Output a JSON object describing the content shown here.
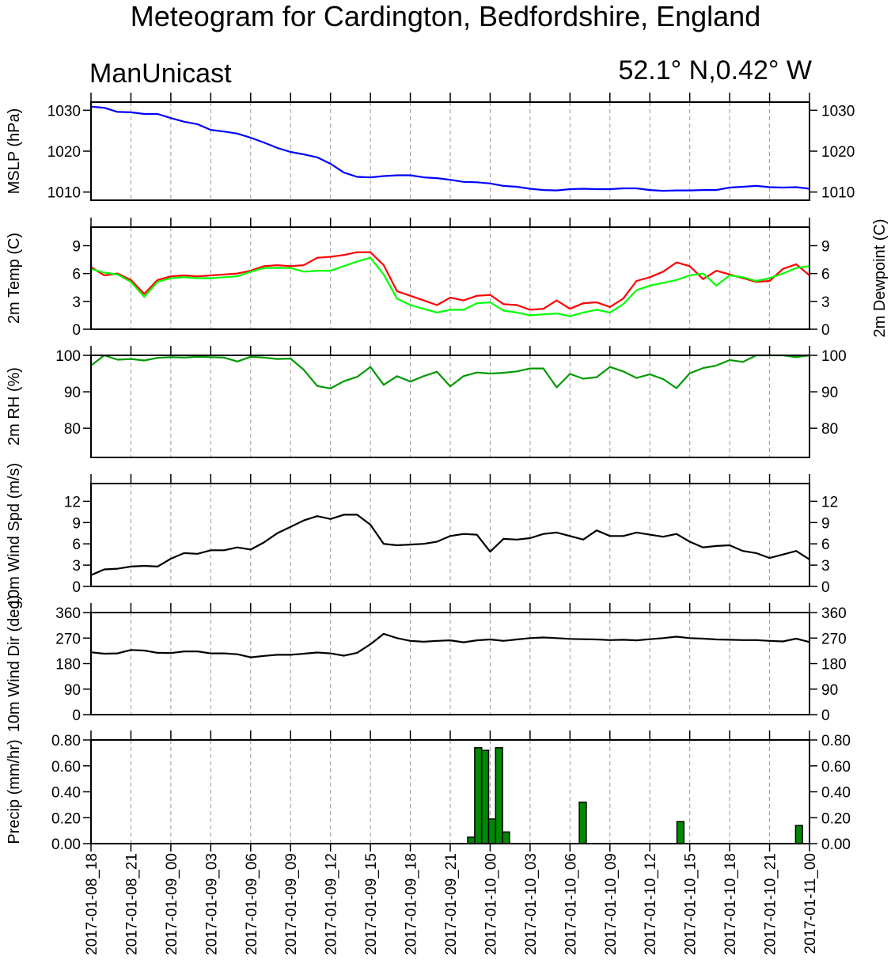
{
  "title": "Meteogram for Cardington, Bedfordshire, England",
  "model": "ManUnicast",
  "location": "52.1° N,0.42° W",
  "colors": {
    "pressure": "#0000ff",
    "temperature": "#ff0000",
    "dewpoint": "#00ff00",
    "rh": "#009900",
    "wind": "#000000",
    "precip_fill": "#008800"
  },
  "chart_data": [
    {
      "type": "line",
      "ylabel": "MSLP (hPa)",
      "ylim": [
        1008,
        1032
      ],
      "yticks": [
        1010,
        1020,
        1030
      ],
      "right_ticks": true,
      "series": [
        {
          "color": "#0000ff",
          "values": [
            1030.9,
            1030.6,
            1029.6,
            1029.5,
            1029.1,
            1029.1,
            1028.1,
            1027.2,
            1026.6,
            1025.2,
            1024.8,
            1024.3,
            1023.3,
            1022.1,
            1020.8,
            1019.8,
            1019.2,
            1018.5,
            1016.9,
            1014.8,
            1013.7,
            1013.6,
            1013.9,
            1014.1,
            1014.1,
            1013.6,
            1013.4,
            1013.0,
            1012.5,
            1012.4,
            1012.1,
            1011.5,
            1011.3,
            1010.8,
            1010.5,
            1010.4,
            1010.7,
            1010.8,
            1010.7,
            1010.7,
            1010.9,
            1010.9,
            1010.5,
            1010.3,
            1010.4,
            1010.4,
            1010.5,
            1010.5,
            1011.1,
            1011.3,
            1011.5,
            1011.2,
            1011.1,
            1011.2,
            1010.8
          ]
        }
      ]
    },
    {
      "type": "line",
      "ylabel": "2m Temp (C)",
      "ylabel_right": "2m Dewpoint (C)",
      "ylim": [
        0,
        11
      ],
      "yticks": [
        0,
        3,
        6,
        9
      ],
      "right_ticks": true,
      "series": [
        {
          "color": "#ff0000",
          "values": [
            6.7,
            5.8,
            6.0,
            5.3,
            3.8,
            5.3,
            5.7,
            5.8,
            5.7,
            5.8,
            5.9,
            6.0,
            6.3,
            6.8,
            6.9,
            6.8,
            6.9,
            7.7,
            7.8,
            8.0,
            8.3,
            8.3,
            6.9,
            4.1,
            3.6,
            3.1,
            2.6,
            3.4,
            3.1,
            3.6,
            3.7,
            2.7,
            2.6,
            2.1,
            2.2,
            3.1,
            2.2,
            2.8,
            2.9,
            2.4,
            3.3,
            5.2,
            5.6,
            6.2,
            7.2,
            6.8,
            5.4,
            6.3,
            5.9,
            5.5,
            5.1,
            5.2,
            6.5,
            7.0,
            5.8
          ]
        },
        {
          "color": "#00ff00",
          "values": [
            6.5,
            6.1,
            5.9,
            5.1,
            3.5,
            5.1,
            5.5,
            5.6,
            5.5,
            5.5,
            5.6,
            5.7,
            6.2,
            6.6,
            6.6,
            6.6,
            6.2,
            6.3,
            6.3,
            6.8,
            7.3,
            7.7,
            5.9,
            3.3,
            2.6,
            2.2,
            1.8,
            2.1,
            2.1,
            2.8,
            2.9,
            2.0,
            1.8,
            1.5,
            1.6,
            1.7,
            1.4,
            1.8,
            2.1,
            1.8,
            2.7,
            4.2,
            4.7,
            5.0,
            5.3,
            5.8,
            6.0,
            4.7,
            5.8,
            5.6,
            5.2,
            5.5,
            6.0,
            6.6,
            6.8
          ]
        }
      ]
    },
    {
      "type": "line",
      "ylabel": "2m RH (%)",
      "ylim": [
        72,
        100
      ],
      "yticks": [
        80,
        90,
        100
      ],
      "right_ticks": true,
      "series": [
        {
          "color": "#009900",
          "values": [
            97.2,
            100,
            98.8,
            99.0,
            98.6,
            99.3,
            99.5,
            99.4,
            99.6,
            99.5,
            99.4,
            98.3,
            99.6,
            99.4,
            99.0,
            99.1,
            96.0,
            91.6,
            90.9,
            92.9,
            94.1,
            96.8,
            91.9,
            94.3,
            92.8,
            94.3,
            95.5,
            91.5,
            94.3,
            95.3,
            95.0,
            95.2,
            95.6,
            96.4,
            96.4,
            91.2,
            94.9,
            93.6,
            94.0,
            96.8,
            95.6,
            93.8,
            94.8,
            93.5,
            91.0,
            95.1,
            96.5,
            97.2,
            98.7,
            98.2,
            100,
            100,
            100,
            99.5,
            100
          ]
        }
      ]
    },
    {
      "type": "line",
      "ylabel": "10m Wind Spd (m/s)",
      "ylim": [
        0,
        14.5
      ],
      "yticks": [
        0,
        3,
        6,
        9,
        12
      ],
      "right_ticks": true,
      "series": [
        {
          "color": "#000000",
          "values": [
            1.6,
            2.4,
            2.5,
            2.8,
            2.9,
            2.8,
            3.9,
            4.7,
            4.6,
            5.1,
            5.1,
            5.5,
            5.2,
            6.2,
            7.5,
            8.4,
            9.3,
            9.9,
            9.5,
            10.1,
            10.1,
            8.7,
            6.0,
            5.8,
            5.9,
            6.0,
            6.3,
            7.1,
            7.4,
            7.3,
            4.9,
            6.7,
            6.6,
            6.8,
            7.4,
            7.6,
            7.1,
            6.6,
            7.9,
            7.1,
            7.1,
            7.6,
            7.3,
            7.0,
            7.4,
            6.3,
            5.5,
            5.7,
            5.8,
            5.0,
            4.7,
            4.0,
            4.5,
            5.0,
            3.8
          ]
        }
      ]
    },
    {
      "type": "line",
      "ylabel": "10m Wind Dir (deg)",
      "ylim": [
        0,
        360
      ],
      "yticks": [
        0,
        90,
        180,
        270,
        360
      ],
      "right_ticks": true,
      "series": [
        {
          "color": "#000000",
          "values": [
            220,
            215,
            216,
            228,
            226,
            218,
            217,
            223,
            223,
            216,
            216,
            213,
            202,
            207,
            211,
            211,
            215,
            219,
            216,
            208,
            218,
            248,
            285,
            270,
            260,
            257,
            260,
            262,
            255,
            262,
            265,
            260,
            265,
            270,
            272,
            270,
            267,
            266,
            265,
            263,
            264,
            262,
            266,
            270,
            275,
            270,
            268,
            265,
            264,
            263,
            263,
            260,
            258,
            268,
            256
          ]
        }
      ]
    },
    {
      "type": "bar",
      "ylabel": "Precip (mm/hr)",
      "ylim": [
        0,
        0.8
      ],
      "yticks": [
        0,
        0.2,
        0.4,
        0.6,
        0.8
      ],
      "yticklabels": [
        "0.00",
        "0.20",
        "0.40",
        "0.60",
        "0.80"
      ],
      "right_ticks": true,
      "xlabels": [
        "2017-01-08_18",
        "2017-01-08_21",
        "2017-01-09_00",
        "2017-01-09_03",
        "2017-01-09_06",
        "2017-01-09_09",
        "2017-01-09_12",
        "2017-01-09_15",
        "2017-01-09_18",
        "2017-01-09_21",
        "2017-01-10_00",
        "2017-01-10_03",
        "2017-01-10_06",
        "2017-01-10_09",
        "2017-01-10_12",
        "2017-01-10_15",
        "2017-01-10_18",
        "2017-01-10_21",
        "2017-01-11_00"
      ],
      "values": [
        0,
        0,
        0,
        0,
        0,
        0,
        0,
        0,
        0,
        0,
        0,
        0,
        0,
        0,
        0,
        0,
        0,
        0,
        0,
        0,
        0,
        0,
        0,
        0,
        0,
        0,
        0,
        0,
        0,
        0,
        0,
        0,
        0,
        0,
        0,
        0,
        0,
        0,
        0,
        0,
        0,
        0,
        0,
        0,
        0,
        0,
        0,
        0,
        0,
        0,
        0,
        0,
        0,
        0,
        0.05,
        0.74,
        0.72,
        0.19,
        0.74,
        0.09,
        0,
        0,
        0,
        0,
        0,
        0,
        0,
        0,
        0,
        0,
        0.32,
        0,
        0,
        0,
        0,
        0,
        0,
        0,
        0,
        0,
        0,
        0,
        0,
        0,
        0.17,
        0,
        0,
        0,
        0,
        0,
        0,
        0,
        0,
        0,
        0,
        0,
        0,
        0,
        0,
        0,
        0,
        0.14,
        0
      ]
    }
  ]
}
